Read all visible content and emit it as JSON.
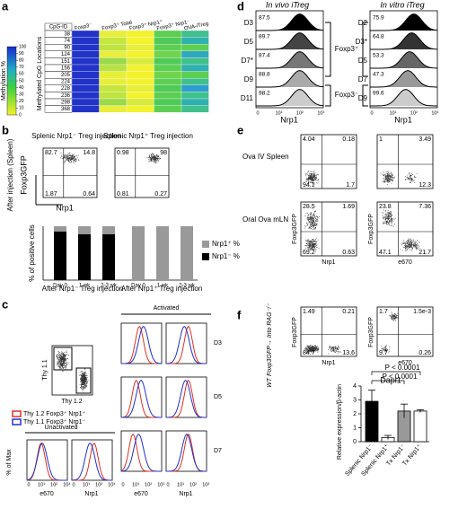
{
  "log_ticks": [
    "0",
    "10¹",
    "10²",
    "10³"
  ],
  "panel_a": {
    "letter": "a",
    "colorbar_title": "Methylation %",
    "colorbar_ticks": [
      100,
      90,
      80,
      70,
      60,
      50,
      40,
      30,
      20,
      10,
      0
    ],
    "row_header": "Methylated CpG Locations",
    "id_header": "CpG-ID",
    "cpg_ids": [
      38,
      74,
      90,
      124,
      151,
      156,
      205,
      224,
      228,
      236,
      298,
      368
    ],
    "columns": [
      {
        "name": "Foxp3⁻",
        "colors": [
          "#2233c8",
          "#2233c8",
          "#2233c8",
          "#2233c8",
          "#2233c8",
          "#2233c8",
          "#2233c8",
          "#2233c8",
          "#2233c8",
          "#2233c8",
          "#2233c8",
          "#2233c8"
        ]
      },
      {
        "name": "Foxp3⁺ Total",
        "colors": [
          "#e8ee3a",
          "#c6e640",
          "#bfe33f",
          "#e8ee3a",
          "#9ad94a",
          "#b8e142",
          "#e8ee3a",
          "#e8ee3a",
          "#c6e640",
          "#bfe33f",
          "#9ad94a",
          "#e8ee3a"
        ]
      },
      {
        "name": "Foxp3⁺ Nrp1⁺",
        "colors": [
          "#f3f22e",
          "#f3f22e",
          "#e8ee3a",
          "#f3f22e",
          "#d8ea3c",
          "#f3f22e",
          "#f3f22e",
          "#f3f22e",
          "#e8ee3a",
          "#f3f22e",
          "#d8ea3c",
          "#f3f22e"
        ]
      },
      {
        "name": "Foxp3⁺ Nrp1⁻",
        "colors": [
          "#5ccf52",
          "#4fca58",
          "#5ccf52",
          "#6fd34e",
          "#4fca58",
          "#5ccf52",
          "#6fd34e",
          "#5ccf52",
          "#4fca58",
          "#5ccf52",
          "#4fca58",
          "#5ccf52"
        ]
      },
      {
        "name": "OVA-iTreg",
        "colors": [
          "#3fc08c",
          "#30b0b0",
          "#5ccf52",
          "#30a8c0",
          "#3fc08c",
          "#30b0b0",
          "#5ccf52",
          "#3fc08c",
          "#2e9ed0",
          "#3fc08c",
          "#30b0b0",
          "#3fc08c"
        ]
      }
    ]
  },
  "panel_b": {
    "letter": "b",
    "plot_titles": [
      "Splenic Nrp1⁻ Treg injection",
      "Splenic Nrp1⁺ Treg injection"
    ],
    "row_label": "After injection (Spleen)",
    "y_axis": "Foxp3GFP",
    "x_axis": "Nrp1",
    "plots": [
      {
        "tl": "82.7",
        "tr": "14.8",
        "bl": "1.87",
        "br": "0.64"
      },
      {
        "tl": "0.98",
        "tr": "98",
        "bl": "0.81",
        "br": "0.27"
      }
    ],
    "bar_chart": {
      "y_axis": "% of positive cells",
      "ylim": [
        0,
        100
      ],
      "categories": [
        "Day 0",
        "1 wk",
        "2-3 wk",
        "Day 0",
        "1 wk",
        "2-3 wk"
      ],
      "groups": [
        "After Nrp1⁻ Treg injection",
        "After Nrp1⁺ Treg injection"
      ],
      "series": [
        {
          "name": "Nrp1⁻ %",
          "color": "#000000",
          "values": [
            90,
            85,
            85,
            0,
            0,
            0
          ]
        },
        {
          "name": "Nrp1⁺ %",
          "color": "#999999",
          "values": [
            10,
            15,
            15,
            100,
            100,
            100
          ]
        }
      ]
    }
  },
  "panel_c": {
    "letter": "c",
    "scatter_y": "Thy 1.1",
    "scatter_x": "Thy 1.2",
    "legend": [
      {
        "name": "Thy 1.2 Foxp3⁺ Nrp1⁺",
        "color": "#e03020"
      },
      {
        "name": "Thy 1.1 Foxp3⁺ Nrp1⁻",
        "color": "#2030d0"
      }
    ],
    "activated": "Activated",
    "unactivated": "Unactivated",
    "days": [
      "D3",
      "D5",
      "D7"
    ],
    "y_axis": "% of Max",
    "x_axes": [
      "e670",
      "Nrp1"
    ]
  },
  "panel_d": {
    "letter": "d",
    "titles": [
      "In vivo iTreg",
      "In vitro iTreg"
    ],
    "left": [
      [
        "D3",
        "87.5"
      ],
      [
        "D5",
        "89.7"
      ],
      [
        "D7*",
        "87.4"
      ],
      [
        "D9",
        "88.8"
      ],
      [
        "D11",
        "98.2"
      ]
    ],
    "right": [
      [
        "D2",
        "75.9"
      ],
      [
        "D3*",
        "64.8"
      ],
      [
        "D5",
        "53.3"
      ],
      [
        "D7",
        "47.3"
      ],
      [
        "D9",
        "99.6"
      ]
    ],
    "labels": [
      "Foxp3⁺",
      "Foxp3⁻"
    ],
    "x_axis": "Nrp1"
  },
  "panel_e": {
    "letter": "e",
    "row_labels": [
      "Ova IV Spleen",
      "Oral Ova mLN"
    ],
    "y_axis": "Foxp3GFP",
    "x_axes": [
      "Nrp1",
      "e670"
    ],
    "plots": [
      {
        "tl": "4.04",
        "tr": "0.18",
        "bl": "94.1",
        "br": "1.7"
      },
      {
        "tl": "1",
        "tr": "3.49",
        "br": "12.3"
      },
      {
        "tl": "28.5",
        "tr": "1.69",
        "bl": "69.2",
        "br": "0.63"
      },
      {
        "tl": "23.8",
        "tr": "7.36",
        "bl": "47.1",
        "br": "21.7"
      }
    ]
  },
  "panel_f": {
    "letter": "f",
    "row_label": "WT Foxp3GFP→ Into RAG⁻/⁻",
    "y_axis": "Foxp3GFP",
    "x_axes": [
      "Nrp1",
      "e670"
    ],
    "plots": [
      {
        "tl": "1.49",
        "tr": "0.21",
        "bl": "84.7",
        "br": "13.6"
      },
      {
        "tl": "1.7",
        "tr": "1.5e-3",
        "bl": "9.7",
        "br": "0.26"
      }
    ],
    "bar_chart": {
      "title": "Dapl1",
      "y_axis": "Relative expression/β-actin",
      "ylim": [
        0,
        4
      ],
      "yticks": [
        0,
        1,
        2,
        3,
        4
      ],
      "categories": [
        "Splenic Nrp1⁻",
        "Splenic Nrp1⁺",
        "Tx Nrp1⁻",
        "Tx Nrp1⁺"
      ],
      "values": [
        2.9,
        0.3,
        2.2,
        2.2
      ],
      "errors": [
        0.8,
        0.15,
        0.5,
        0.1
      ],
      "colors": [
        "#000000",
        "#ffffff",
        "#999999",
        "#ffffff"
      ],
      "annotations": [
        "P < 0.0001",
        "P < 0.0001"
      ]
    }
  }
}
